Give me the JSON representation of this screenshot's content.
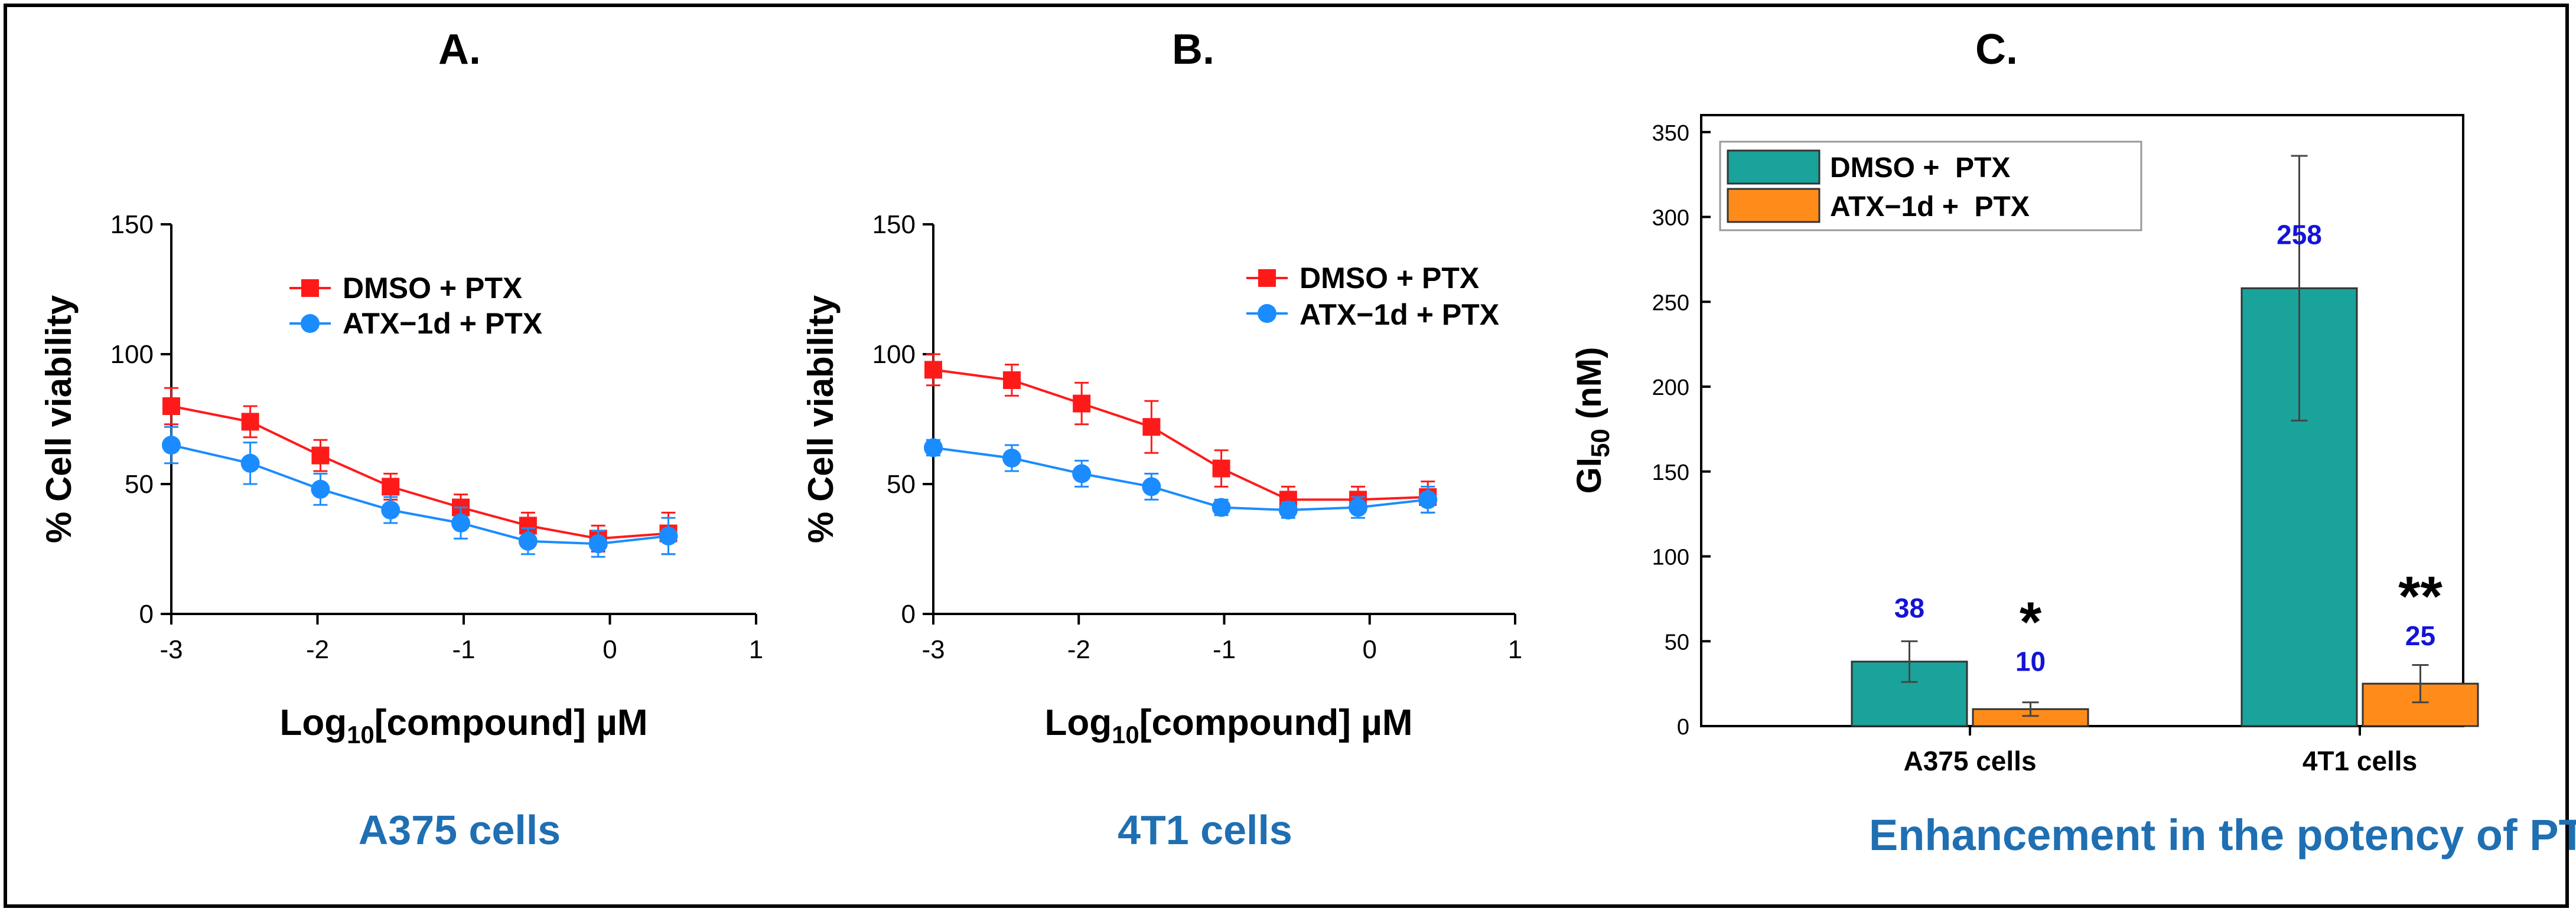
{
  "colors": {
    "dmso": "#ff1a1a",
    "atx": "#1a8cff",
    "teal": "#19a39a",
    "orange": "#ff8c1a",
    "caption": "#1f6fb2",
    "value_label": "#1414d6",
    "error_bar": "#444444"
  },
  "chart_data": [
    {
      "type": "line",
      "panel_label": "A.",
      "caption": "A375 cells",
      "xlabel_main": "Log",
      "xlabel_sub": "10",
      "xlabel_rest": "[compound] µM",
      "ylabel": "% Cell viability",
      "xlim": [
        -3,
        1
      ],
      "ylim": [
        0,
        150
      ],
      "xticks": [
        "-3",
        "-2",
        "-1",
        "0",
        "1"
      ],
      "yticks": [
        "0",
        "50",
        "100",
        "150"
      ],
      "legend": [
        "DMSO + PTX",
        "ATX−1d + PTX"
      ],
      "series": [
        {
          "name": "DMSO + PTX",
          "x": [
            -3,
            -2.46,
            -1.98,
            -1.5,
            -1.02,
            -0.56,
            -0.08,
            0.4
          ],
          "y": [
            80,
            74,
            61,
            49,
            41,
            34,
            29,
            31
          ],
          "err": [
            7,
            6,
            6,
            5,
            5,
            5,
            5,
            8
          ]
        },
        {
          "name": "ATX−1d + PTX",
          "x": [
            -3,
            -2.46,
            -1.98,
            -1.5,
            -1.02,
            -0.56,
            -0.08,
            0.4
          ],
          "y": [
            65,
            58,
            48,
            40,
            35,
            28,
            27,
            30
          ],
          "err": [
            7,
            8,
            6,
            5,
            6,
            5,
            5,
            7
          ]
        }
      ]
    },
    {
      "type": "line",
      "panel_label": "B.",
      "caption": "4T1 cells",
      "xlabel_main": "Log",
      "xlabel_sub": "10",
      "xlabel_rest": "[compound] µM",
      "ylabel": "% Cell viability",
      "xlim": [
        -3,
        1
      ],
      "ylim": [
        0,
        150
      ],
      "xticks": [
        "-3",
        "-2",
        "-1",
        "0",
        "1"
      ],
      "yticks": [
        "0",
        "50",
        "100",
        "150"
      ],
      "legend": [
        "DMSO + PTX",
        "ATX−1d + PTX"
      ],
      "series": [
        {
          "name": "DMSO + PTX",
          "x": [
            -3,
            -2.46,
            -1.98,
            -1.5,
            -1.02,
            -0.56,
            -0.08,
            0.4
          ],
          "y": [
            94,
            90,
            81,
            72,
            56,
            44,
            44,
            45
          ],
          "err": [
            6,
            6,
            8,
            10,
            7,
            5,
            5,
            6
          ]
        },
        {
          "name": "ATX−1d + PTX",
          "x": [
            -3,
            -2.46,
            -1.98,
            -1.5,
            -1.02,
            -0.56,
            -0.08,
            0.4
          ],
          "y": [
            64,
            60,
            54,
            49,
            41,
            40,
            41,
            44
          ],
          "err": [
            3,
            5,
            5,
            5,
            3,
            3,
            4,
            5
          ]
        }
      ]
    },
    {
      "type": "bar",
      "panel_label": "C.",
      "caption": "Enhancement in the potency of PTX",
      "ylabel_main": "GI",
      "ylabel_sub": "50",
      "ylabel_rest": " (nM)",
      "ylim": [
        0,
        360
      ],
      "yticks": [
        "0",
        "50",
        "100",
        "150",
        "200",
        "250",
        "300",
        "350"
      ],
      "categories": [
        "A375 cells",
        "4T1 cells"
      ],
      "legend": [
        "DMSO +  PTX",
        "ATX−1d +  PTX"
      ],
      "series": [
        {
          "name": "DMSO +  PTX",
          "values": [
            38,
            258
          ],
          "err": [
            12,
            78
          ],
          "labels": [
            "38",
            "258"
          ]
        },
        {
          "name": "ATX−1d +  PTX",
          "values": [
            10,
            25
          ],
          "err": [
            4,
            11
          ],
          "labels": [
            "10",
            "25"
          ]
        }
      ],
      "significance": [
        "*",
        "**"
      ]
    }
  ]
}
